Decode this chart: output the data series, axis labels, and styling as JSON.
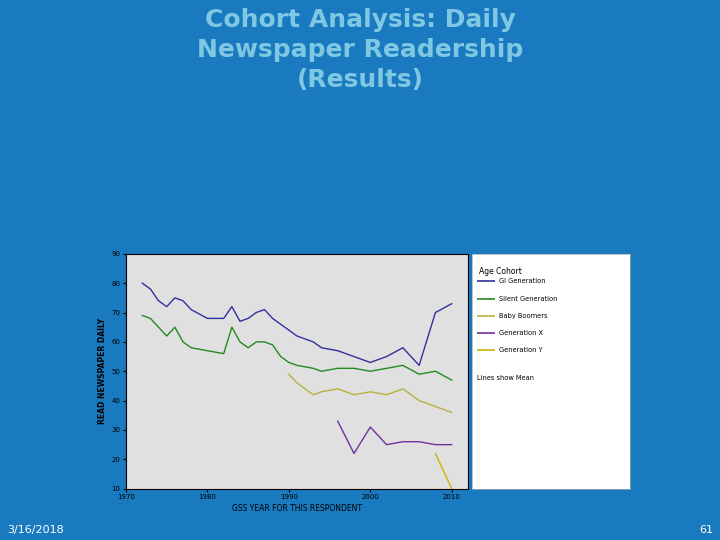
{
  "title": "Cohort Analysis: Daily\nNewspaper Readership\n(Results)",
  "title_color": "#7ec8e3",
  "bg_color": "#1a7abf",
  "slide_date": "3/16/2018",
  "slide_num": "61",
  "chart_bg": "#e0e0e0",
  "xlabel": "GSS YEAR FOR THIS RESPONDENT",
  "ylabel": "READ NEWSPAPER DAILY",
  "xlim": [
    1970,
    2012
  ],
  "ylim": [
    10,
    90
  ],
  "yticks": [
    10,
    20,
    30,
    40,
    50,
    60,
    70,
    80,
    90
  ],
  "xticks": [
    1970,
    1980,
    1990,
    2000,
    2010
  ],
  "legend_title": "Age Cohort",
  "legend_note": "Lines show Mean",
  "series": [
    {
      "label": "GI Generation",
      "color": "#3030a0",
      "x": [
        1972,
        1973,
        1974,
        1975,
        1976,
        1977,
        1978,
        1980,
        1982,
        1983,
        1984,
        1985,
        1986,
        1987,
        1988,
        1989,
        1990,
        1991,
        1993,
        1994,
        1996,
        1998,
        2000,
        2002,
        2004,
        2006,
        2008,
        2010
      ],
      "y": [
        80,
        78,
        74,
        72,
        75,
        74,
        71,
        68,
        68,
        72,
        67,
        68,
        70,
        71,
        68,
        66,
        64,
        62,
        60,
        58,
        57,
        55,
        53,
        55,
        58,
        52,
        70,
        73
      ]
    },
    {
      "label": "Silent Generation",
      "color": "#228B22",
      "x": [
        1972,
        1973,
        1974,
        1975,
        1976,
        1977,
        1978,
        1980,
        1982,
        1983,
        1984,
        1985,
        1986,
        1987,
        1988,
        1989,
        1990,
        1991,
        1993,
        1994,
        1996,
        1998,
        2000,
        2002,
        2004,
        2006,
        2008,
        2010
      ],
      "y": [
        69,
        68,
        65,
        62,
        65,
        60,
        58,
        57,
        56,
        65,
        60,
        58,
        60,
        60,
        59,
        55,
        53,
        52,
        51,
        50,
        51,
        51,
        50,
        51,
        52,
        49,
        50,
        47
      ]
    },
    {
      "label": "Baby Boomers",
      "color": "#b8b040",
      "x": [
        1990,
        1991,
        1993,
        1994,
        1996,
        1998,
        2000,
        2002,
        2004,
        2006,
        2008,
        2010
      ],
      "y": [
        49,
        46,
        42,
        43,
        44,
        42,
        43,
        42,
        44,
        40,
        38,
        36
      ]
    },
    {
      "label": "Generation X",
      "color": "#7030a0",
      "x": [
        1996,
        1998,
        2000,
        2002,
        2004,
        2006,
        2008,
        2010
      ],
      "y": [
        33,
        22,
        31,
        25,
        26,
        26,
        25,
        25
      ]
    },
    {
      "label": "Generation Y",
      "color": "#c8b400",
      "x": [
        2008,
        2010
      ],
      "y": [
        22,
        10
      ]
    }
  ]
}
